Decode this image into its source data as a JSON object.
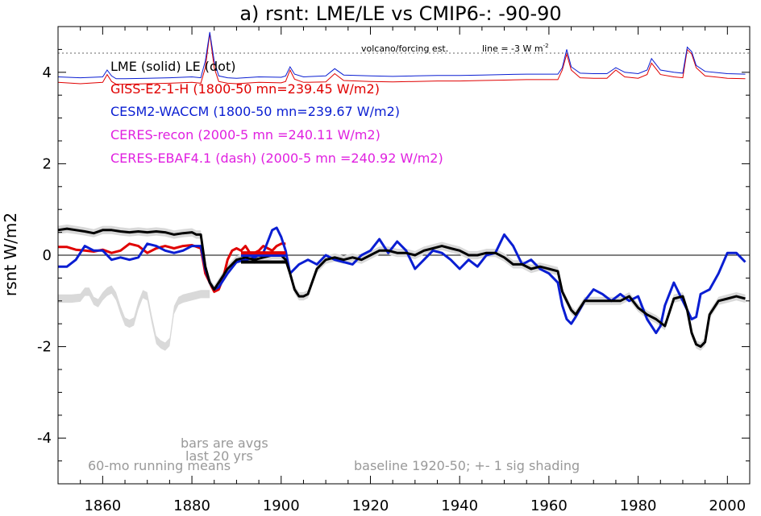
{
  "chart_data": {
    "type": "line",
    "title": "a) rsnt: LME/LE vs CMIP6-: -90-90",
    "ylabel": "rsnt W/m2",
    "xlim": [
      1850,
      2005
    ],
    "ylim": [
      -5,
      5
    ],
    "xticks": [
      1860,
      1880,
      1900,
      1920,
      1940,
      1960,
      1980,
      2000
    ],
    "yticks": [
      4,
      2,
      0,
      -2,
      -4
    ],
    "xtick_labels": [
      "1860",
      "1880",
      "1900",
      "1920",
      "1940",
      "1960",
      "1980",
      "2000"
    ],
    "ytick_labels": [
      "4",
      "2",
      "0",
      "-2",
      "-4"
    ],
    "zero_line": 0,
    "forcing_ref_line": 4.42,
    "colors": {
      "lme": "#000000",
      "giss": "#e00000",
      "cesm": "#0a1ed2",
      "ceres": "#e020e0",
      "grey": "#999999",
      "shade": "#d9d9d9"
    },
    "legend": {
      "lme_le": "LME (solid)    LE (dot)",
      "giss": "GISS-E2-1-H (1800-50 mn=239.45 W/m2)",
      "cesm": "CESM2-WACCM (1800-50 mn=239.67 W/m2)",
      "ceres_recon": "CERES-recon (2000-5 mn =240.11 W/m2)",
      "ceres_ebaf": "CERES-EBAF4.1 (dash) (2000-5 mn =240.92 W/m2)"
    },
    "annotations": {
      "volcano": "volcano/forcing est.",
      "line_scale": "line = -3 W m",
      "line_scale_sup": "-2",
      "bars_note_1": "bars are avgs",
      "bars_note_2": "last 20 yrs",
      "running_means": "60-mo running means",
      "baseline": "baseline 1920-50; +- 1 sig shading"
    },
    "series": [
      {
        "key": "lme",
        "style": "solid",
        "shaded": true,
        "x": [
          1850,
          1852,
          1854,
          1856,
          1858,
          1860,
          1862,
          1864,
          1866,
          1868,
          1870,
          1872,
          1874,
          1876,
          1878,
          1880,
          1881,
          1882,
          1883,
          1884,
          1885,
          1886,
          1888,
          1890,
          1892,
          1894,
          1896,
          1898,
          1900,
          1901,
          1902,
          1903,
          1904,
          1905,
          1906,
          1908,
          1910,
          1912,
          1914,
          1916,
          1918,
          1920,
          1922,
          1924,
          1926,
          1928,
          1930,
          1932,
          1934,
          1936,
          1938,
          1940,
          1942,
          1944,
          1946,
          1948,
          1950,
          1952,
          1954,
          1956,
          1958,
          1960,
          1962,
          1963,
          1964,
          1965,
          1966,
          1968,
          1970,
          1972,
          1974,
          1976,
          1978,
          1980,
          1982,
          1984,
          1986,
          1988,
          1990,
          1991,
          1992,
          1993,
          1994,
          1995,
          1996,
          1998,
          2000,
          2002,
          2004
        ],
        "y": [
          0.55,
          0.58,
          0.55,
          0.52,
          0.48,
          0.55,
          0.55,
          0.52,
          0.5,
          0.52,
          0.5,
          0.52,
          0.5,
          0.45,
          0.48,
          0.5,
          0.45,
          0.45,
          -0.25,
          -0.6,
          -0.75,
          -0.6,
          -0.3,
          -0.1,
          -0.05,
          -0.1,
          -0.05,
          0.0,
          0.0,
          -0.1,
          -0.4,
          -0.75,
          -0.9,
          -0.9,
          -0.85,
          -0.3,
          -0.1,
          -0.05,
          -0.1,
          -0.05,
          -0.1,
          0.0,
          0.1,
          0.1,
          0.05,
          0.05,
          0.0,
          0.1,
          0.15,
          0.2,
          0.15,
          0.1,
          0.0,
          0.0,
          0.05,
          0.05,
          -0.05,
          -0.2,
          -0.2,
          -0.3,
          -0.25,
          -0.3,
          -0.35,
          -0.8,
          -1.0,
          -1.2,
          -1.3,
          -1.0,
          -1.0,
          -1.0,
          -1.0,
          -1.0,
          -0.9,
          -1.15,
          -1.3,
          -1.4,
          -1.55,
          -0.95,
          -0.9,
          -1.2,
          -1.7,
          -1.95,
          -2.0,
          -1.9,
          -1.3,
          -1.0,
          -0.95,
          -0.9,
          -0.95
        ]
      },
      {
        "key": "le",
        "style": "dot",
        "shaded": true,
        "x": [
          1850,
          1851,
          1853,
          1855,
          1856,
          1857,
          1858,
          1859,
          1860,
          1861,
          1862,
          1863,
          1864,
          1865,
          1866,
          1867,
          1868,
          1869,
          1870,
          1871,
          1872,
          1873,
          1874,
          1875,
          1876,
          1877,
          1878,
          1880,
          1882,
          1884
        ],
        "y": [
          -0.95,
          -0.95,
          -0.95,
          -0.93,
          -0.8,
          -0.8,
          -1.0,
          -1.05,
          -0.9,
          -0.8,
          -0.75,
          -0.9,
          -1.2,
          -1.45,
          -1.5,
          -1.45,
          -1.1,
          -0.85,
          -0.9,
          -1.4,
          -1.85,
          -1.95,
          -2.0,
          -1.9,
          -1.2,
          -1.0,
          -0.95,
          -0.9,
          -0.85,
          -0.85
        ]
      },
      {
        "key": "giss",
        "style": "solid",
        "x": [
          1850,
          1852,
          1854,
          1856,
          1858,
          1860,
          1862,
          1864,
          1866,
          1868,
          1870,
          1872,
          1874,
          1876,
          1878,
          1880,
          1882,
          1883,
          1884,
          1885,
          1886,
          1887,
          1888,
          1889,
          1890,
          1891,
          1892,
          1893,
          1894,
          1895,
          1896,
          1897,
          1898,
          1899,
          1900,
          1901
        ],
        "y": [
          0.18,
          0.18,
          0.12,
          0.1,
          0.08,
          0.12,
          0.05,
          0.1,
          0.25,
          0.2,
          0.05,
          0.15,
          0.2,
          0.15,
          0.2,
          0.22,
          0.15,
          -0.4,
          -0.6,
          -0.8,
          -0.75,
          -0.5,
          -0.1,
          0.1,
          0.15,
          0.1,
          0.2,
          0.05,
          0.05,
          0.1,
          0.2,
          0.15,
          0.1,
          0.2,
          0.25,
          0.25
        ]
      },
      {
        "key": "cesm",
        "style": "solid",
        "x": [
          1850,
          1852,
          1854,
          1856,
          1858,
          1860,
          1862,
          1864,
          1866,
          1868,
          1870,
          1872,
          1874,
          1876,
          1878,
          1880,
          1882,
          1883,
          1884,
          1885,
          1886,
          1888,
          1890,
          1892,
          1894,
          1896,
          1897,
          1898,
          1899,
          1900,
          1901,
          1902,
          1904,
          1906,
          1908,
          1910,
          1912,
          1914,
          1916,
          1918,
          1920,
          1922,
          1924,
          1926,
          1928,
          1930,
          1932,
          1934,
          1936,
          1938,
          1940,
          1942,
          1944,
          1946,
          1948,
          1950,
          1952,
          1954,
          1956,
          1958,
          1960,
          1962,
          1963,
          1964,
          1965,
          1966,
          1968,
          1970,
          1972,
          1974,
          1976,
          1978,
          1980,
          1982,
          1984,
          1985,
          1986,
          1988,
          1990,
          1991,
          1992,
          1993,
          1994,
          1995,
          1996,
          1998,
          2000,
          2002,
          2004
        ],
        "y": [
          -0.25,
          -0.25,
          -0.1,
          0.2,
          0.1,
          0.1,
          -0.1,
          -0.05,
          -0.1,
          -0.05,
          0.25,
          0.2,
          0.1,
          0.05,
          0.1,
          0.2,
          0.2,
          -0.3,
          -0.6,
          -0.75,
          -0.7,
          -0.4,
          -0.15,
          -0.1,
          -0.05,
          0.05,
          0.3,
          0.55,
          0.6,
          0.4,
          0.1,
          -0.4,
          -0.2,
          -0.1,
          -0.2,
          0.0,
          -0.1,
          -0.15,
          -0.2,
          0.0,
          0.1,
          0.35,
          0.05,
          0.3,
          0.1,
          -0.3,
          -0.1,
          0.1,
          0.05,
          -0.1,
          -0.3,
          -0.1,
          -0.25,
          0.0,
          0.05,
          0.45,
          0.2,
          -0.2,
          -0.1,
          -0.3,
          -0.4,
          -0.6,
          -1.1,
          -1.4,
          -1.5,
          -1.35,
          -1.0,
          -0.75,
          -0.85,
          -1.0,
          -0.85,
          -1.0,
          -0.9,
          -1.4,
          -1.7,
          -1.55,
          -1.1,
          -0.6,
          -1.0,
          -1.2,
          -1.4,
          -1.35,
          -0.85,
          -0.8,
          -0.75,
          -0.4,
          0.05,
          0.05,
          -0.15
        ]
      }
    ],
    "bars": [
      {
        "key": "lme",
        "style": "solid",
        "x0": 1891,
        "x1": 1901,
        "y": -0.15
      },
      {
        "key": "le",
        "style": "dot",
        "x0": 1875,
        "x1": 1884,
        "y": -0.78
      },
      {
        "key": "cesm",
        "style": "solid",
        "x0": 1891,
        "x1": 1901,
        "y": 0.0
      },
      {
        "key": "giss",
        "style": "solid",
        "x0": 1891,
        "x1": 1901,
        "y": 0.05
      }
    ],
    "forcing": {
      "x": [
        1850,
        1855,
        1860,
        1861,
        1862,
        1863,
        1865,
        1870,
        1875,
        1880,
        1882,
        1883,
        1884,
        1885,
        1886,
        1888,
        1890,
        1895,
        1900,
        1901,
        1902,
        1903,
        1905,
        1910,
        1912,
        1914,
        1920,
        1925,
        1930,
        1935,
        1940,
        1945,
        1950,
        1955,
        1960,
        1962,
        1963,
        1964,
        1965,
        1967,
        1970,
        1973,
        1975,
        1977,
        1980,
        1982,
        1983,
        1985,
        1988,
        1990,
        1991,
        1992,
        1993,
        1995,
        2000,
        2004
      ],
      "forcing_a": [
        3.78,
        3.75,
        3.78,
        3.95,
        3.8,
        3.74,
        3.74,
        3.75,
        3.76,
        3.78,
        3.76,
        4.1,
        4.85,
        4.1,
        3.8,
        3.76,
        3.75,
        3.78,
        3.77,
        3.8,
        4.05,
        3.85,
        3.78,
        3.79,
        3.97,
        3.82,
        3.8,
        3.79,
        3.8,
        3.81,
        3.81,
        3.82,
        3.83,
        3.84,
        3.84,
        3.84,
        4.05,
        4.4,
        4.05,
        3.88,
        3.87,
        3.87,
        4.05,
        3.9,
        3.87,
        3.95,
        4.2,
        3.95,
        3.9,
        3.88,
        4.5,
        4.4,
        4.1,
        3.92,
        3.87,
        3.86
      ],
      "forcing_b": [
        3.9,
        3.88,
        3.9,
        4.05,
        3.92,
        3.86,
        3.86,
        3.87,
        3.88,
        3.9,
        3.88,
        4.25,
        4.88,
        4.25,
        3.92,
        3.88,
        3.87,
        3.9,
        3.89,
        3.92,
        4.12,
        3.96,
        3.9,
        3.92,
        4.08,
        3.94,
        3.92,
        3.91,
        3.92,
        3.93,
        3.93,
        3.94,
        3.95,
        3.96,
        3.96,
        3.96,
        4.1,
        4.5,
        4.12,
        3.98,
        3.97,
        3.97,
        4.1,
        4.0,
        3.97,
        4.05,
        4.3,
        4.05,
        4.0,
        3.98,
        4.55,
        4.45,
        4.15,
        4.02,
        3.97,
        3.96
      ]
    }
  }
}
